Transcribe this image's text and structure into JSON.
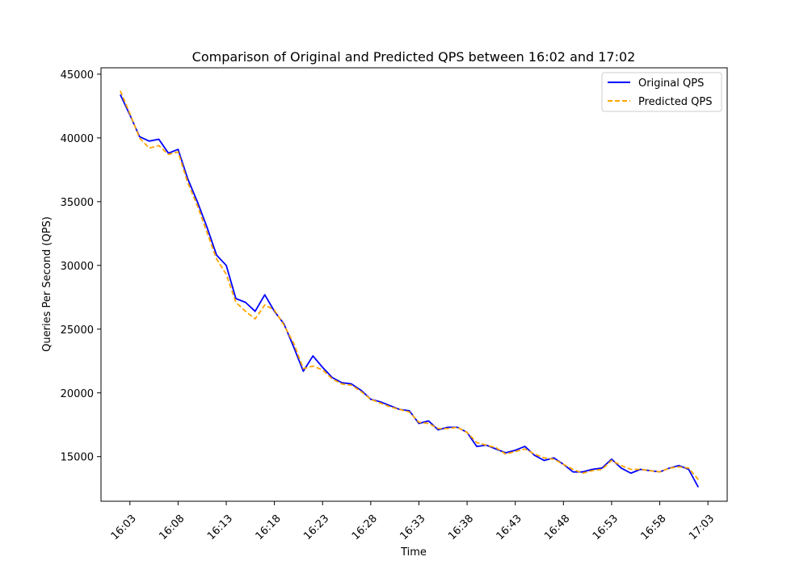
{
  "chart_data": {
    "type": "line",
    "title": "Comparison of Original and Predicted QPS between 16:02 and 17:02",
    "xlabel": "Time",
    "ylabel": "Queries Per Second (QPS)",
    "x_unit": "time of day (HH:MM)",
    "xlim": [
      "16:00",
      "17:05"
    ],
    "ylim": [
      11500,
      45500
    ],
    "xticks": [
      "16:03",
      "16:08",
      "16:13",
      "16:18",
      "16:23",
      "16:28",
      "16:33",
      "16:38",
      "16:43",
      "16:48",
      "16:53",
      "16:58",
      "17:03"
    ],
    "yticks": [
      15000,
      20000,
      25000,
      30000,
      35000,
      40000,
      45000
    ],
    "grid": false,
    "legend_position": "top-right",
    "x": [
      "16:02",
      "16:03",
      "16:04",
      "16:05",
      "16:06",
      "16:07",
      "16:08",
      "16:09",
      "16:10",
      "16:11",
      "16:12",
      "16:13",
      "16:14",
      "16:15",
      "16:16",
      "16:17",
      "16:18",
      "16:19",
      "16:20",
      "16:21",
      "16:22",
      "16:23",
      "16:24",
      "16:25",
      "16:26",
      "16:27",
      "16:28",
      "16:29",
      "16:30",
      "16:31",
      "16:32",
      "16:33",
      "16:34",
      "16:35",
      "16:36",
      "16:37",
      "16:38",
      "16:39",
      "16:40",
      "16:41",
      "16:42",
      "16:43",
      "16:44",
      "16:45",
      "16:46",
      "16:47",
      "16:48",
      "16:49",
      "16:50",
      "16:51",
      "16:52",
      "16:53",
      "16:54",
      "16:55",
      "16:56",
      "16:57",
      "16:58",
      "16:59",
      "17:00",
      "17:01",
      "17:02"
    ],
    "series": [
      {
        "name": "Original QPS",
        "color": "#0000ff",
        "style": "solid",
        "values": [
          43400,
          41800,
          40100,
          39750,
          39900,
          38800,
          39100,
          36800,
          35000,
          33000,
          30800,
          30000,
          27400,
          27100,
          26400,
          27700,
          26400,
          25400,
          23600,
          21700,
          22900,
          22000,
          21200,
          20800,
          20700,
          20200,
          19500,
          19300,
          19000,
          18700,
          18600,
          17600,
          17800,
          17100,
          17300,
          17300,
          16900,
          15800,
          15900,
          15600,
          15300,
          15500,
          15800,
          15100,
          14700,
          14900,
          14400,
          13800,
          13800,
          14000,
          14100,
          14800,
          14100,
          13700,
          14000,
          13900,
          13800,
          14100,
          14300,
          14000,
          12600
        ]
      },
      {
        "name": "Predicted QPS",
        "color": "#ffa500",
        "style": "dashed",
        "values": [
          43700,
          41900,
          40000,
          39200,
          39400,
          38700,
          38900,
          36500,
          34700,
          32600,
          30500,
          29300,
          27100,
          26400,
          25800,
          26900,
          26500,
          25300,
          23900,
          21900,
          22100,
          21800,
          21100,
          20700,
          20600,
          20100,
          19500,
          19200,
          18900,
          18700,
          18500,
          17700,
          17600,
          17200,
          17200,
          17300,
          16900,
          16100,
          15900,
          15700,
          15200,
          15400,
          15600,
          15200,
          14900,
          14800,
          14400,
          14000,
          13700,
          13900,
          14000,
          14700,
          14300,
          14000,
          14000,
          13900,
          13800,
          14100,
          14200,
          14100,
          13200
        ]
      }
    ]
  }
}
